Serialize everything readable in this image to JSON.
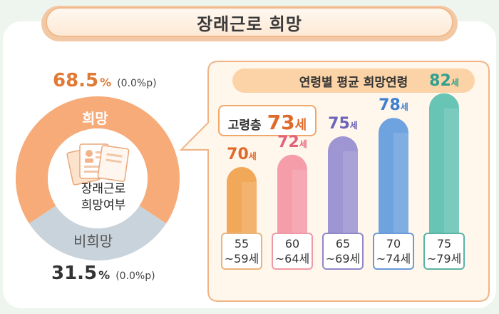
{
  "title": "장래근로 희망",
  "donut": {
    "center_line1": "장래근로",
    "center_line2": "희망여부",
    "hope": {
      "label": "희망",
      "pct": "68.5",
      "unit": "%",
      "change": "(0.0%p)",
      "value": 68.5,
      "color": "#f6ab78"
    },
    "nohope": {
      "label": "비희망",
      "pct": "31.5",
      "unit": "%",
      "change": "(0.0%p)",
      "value": 31.5,
      "color": "#c9d3db"
    }
  },
  "panel": {
    "title": "연령별 평균 희망연령",
    "avg_label": "고령층",
    "avg_value": "73",
    "avg_unit": "세"
  },
  "chart_data": {
    "type": "bar",
    "title": "연령별 평균 희망연령",
    "categories": [
      "55 ~59세",
      "60 ~64세",
      "65 ~69세",
      "70 ~74세",
      "75 ~79세"
    ],
    "category_lines": [
      [
        "55",
        "~59세"
      ],
      [
        "60",
        "~64세"
      ],
      [
        "65",
        "~69세"
      ],
      [
        "70",
        "~74세"
      ],
      [
        "75",
        "~79세"
      ]
    ],
    "values": [
      70,
      72,
      75,
      78,
      82
    ],
    "value_unit": "세",
    "colors": [
      "#f2a859",
      "#f59eaa",
      "#9d96d2",
      "#6fa3e0",
      "#68c4b4"
    ],
    "value_colors": [
      "#e06a2a",
      "#e4617a",
      "#6c64b8",
      "#3f7fcf",
      "#2fa08f"
    ],
    "border_colors": [
      "#e8b47c",
      "#ef98a6",
      "#8f88c8",
      "#6a9ad8",
      "#5bb3a4"
    ]
  }
}
